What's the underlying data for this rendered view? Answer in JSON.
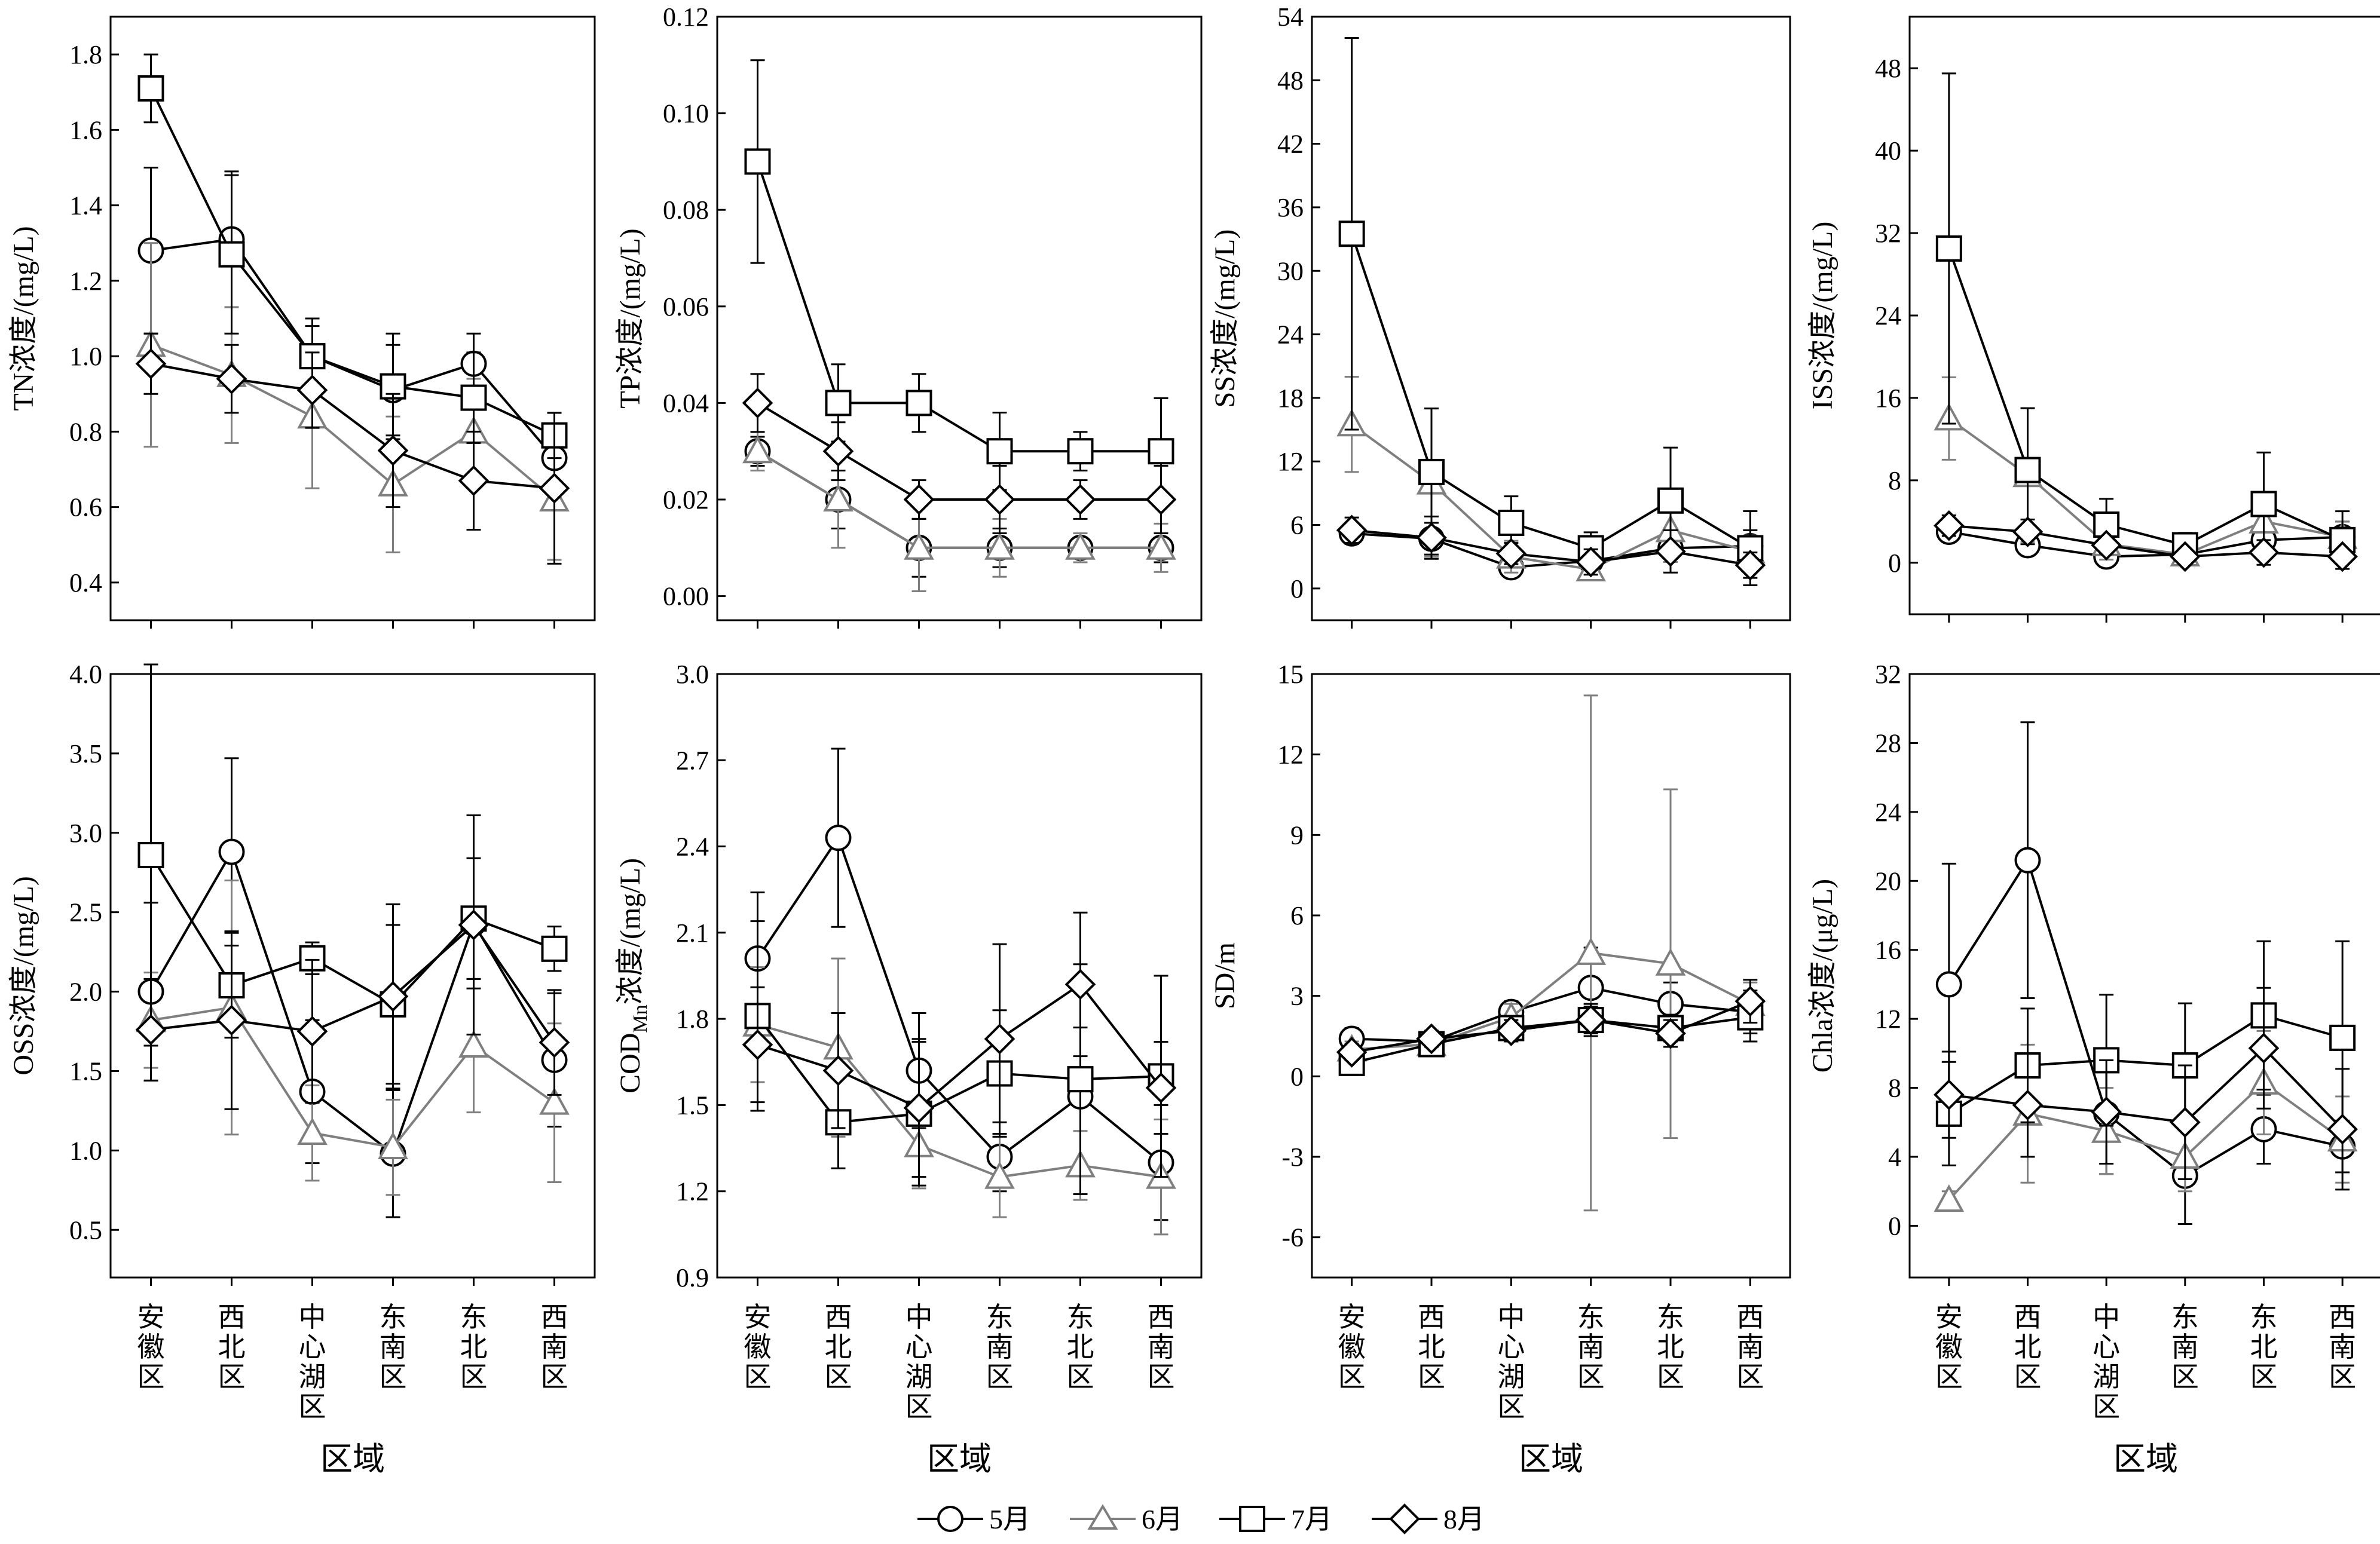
{
  "legend": {
    "items": [
      {
        "label": "5月",
        "marker": "circle",
        "color": "#000000"
      },
      {
        "label": "6月",
        "marker": "triangle",
        "color": "#7f7f7f"
      },
      {
        "label": "7月",
        "marker": "square",
        "color": "#000000"
      },
      {
        "label": "8月",
        "marker": "diamond",
        "color": "#000000"
      }
    ]
  },
  "chart_data": [
    {
      "type": "line",
      "ylabel": "TN浓度/(mg/L)",
      "xlabel": "",
      "categories": [
        "安徽区",
        "西北区",
        "中心湖区",
        "东南区",
        "东北区",
        "西南区"
      ],
      "ylim": [
        0.3,
        1.9
      ],
      "yticks": [
        0.4,
        0.6,
        0.8,
        1.0,
        1.2,
        1.4,
        1.6,
        1.8
      ],
      "tick_decimals": 1,
      "series": [
        {
          "name": "5月",
          "values": [
            1.28,
            1.31,
            1.0,
            0.91,
            0.98,
            0.73
          ],
          "err": [
            0.22,
            0.18,
            0.08,
            0.12,
            0.08,
            0.12
          ]
        },
        {
          "name": "6月",
          "values": [
            1.03,
            0.95,
            0.84,
            0.66,
            0.8,
            0.62
          ],
          "err": [
            0.27,
            0.18,
            0.19,
            0.18,
            0.14,
            0.16
          ]
        },
        {
          "name": "7月",
          "values": [
            1.71,
            1.27,
            1.0,
            0.92,
            0.89,
            0.79
          ],
          "err": [
            0.09,
            0.21,
            0.1,
            0.14,
            0.12,
            0.06
          ]
        },
        {
          "name": "8月",
          "values": [
            0.98,
            0.94,
            0.91,
            0.75,
            0.67,
            0.65
          ],
          "err": [
            0.08,
            0.09,
            0.1,
            0.15,
            0.13,
            0.2
          ]
        }
      ]
    },
    {
      "type": "line",
      "ylabel": "TP浓度/(mg/L)",
      "xlabel": "",
      "categories": [
        "安徽区",
        "西北区",
        "中心湖区",
        "东南区",
        "东北区",
        "西南区"
      ],
      "ylim": [
        -0.005,
        0.12
      ],
      "yticks": [
        0,
        0.02,
        0.04,
        0.06,
        0.08,
        0.1,
        0.12
      ],
      "tick_decimals": 2,
      "series": [
        {
          "name": "5月",
          "values": [
            0.03,
            0.02,
            0.01,
            0.01,
            0.01,
            0.01
          ],
          "err": [
            0.003,
            0.006,
            0.006,
            0.004,
            0.002,
            0.003
          ]
        },
        {
          "name": "6月",
          "values": [
            0.03,
            0.02,
            0.01,
            0.01,
            0.01,
            0.01
          ],
          "err": [
            0.004,
            0.01,
            0.009,
            0.006,
            0.003,
            0.005
          ]
        },
        {
          "name": "7月",
          "values": [
            0.09,
            0.04,
            0.04,
            0.03,
            0.03,
            0.03
          ],
          "err": [
            0.021,
            0.008,
            0.006,
            0.008,
            0.004,
            0.011
          ]
        },
        {
          "name": "8月",
          "values": [
            0.04,
            0.03,
            0.02,
            0.02,
            0.02,
            0.02
          ],
          "err": [
            0.006,
            0.006,
            0.004,
            0.007,
            0.004,
            0.007
          ]
        }
      ]
    },
    {
      "type": "line",
      "ylabel": "SS浓度/(mg/L)",
      "xlabel": "",
      "categories": [
        "安徽区",
        "西北区",
        "中心湖区",
        "东南区",
        "东北区",
        "西南区"
      ],
      "ylim": [
        -3,
        54
      ],
      "yticks": [
        0,
        6,
        12,
        18,
        24,
        30,
        36,
        42,
        48,
        54
      ],
      "tick_decimals": 0,
      "series": [
        {
          "name": "5月",
          "values": [
            5.2,
            4.7,
            2.0,
            2.6,
            3.8,
            4.0
          ],
          "err": [
            1.0,
            1.5,
            0.8,
            1.0,
            1.3,
            1.5
          ]
        },
        {
          "name": "6月",
          "values": [
            15.5,
            10.0,
            3.0,
            1.8,
            5.5,
            3.5
          ],
          "err": [
            4.5,
            7.0,
            1.5,
            0.8,
            3.0,
            1.5
          ]
        },
        {
          "name": "7月",
          "values": [
            33.5,
            11.0,
            6.2,
            3.8,
            8.3,
            3.8
          ],
          "err": [
            18.5,
            6.0,
            2.5,
            1.5,
            5.0,
            3.5
          ]
        },
        {
          "name": "8月",
          "values": [
            5.5,
            4.8,
            3.3,
            2.5,
            3.5,
            2.2
          ],
          "err": [
            1.2,
            2.0,
            1.0,
            1.2,
            2.0,
            1.2
          ]
        }
      ]
    },
    {
      "type": "line",
      "ylabel": "ISS浓度/(mg/L)",
      "xlabel": "",
      "categories": [
        "安徽区",
        "西北区",
        "中心湖区",
        "东南区",
        "东北区",
        "西南区"
      ],
      "ylim": [
        -5,
        53
      ],
      "yticks": [
        0,
        8,
        16,
        24,
        32,
        40,
        48
      ],
      "tick_decimals": 0,
      "series": [
        {
          "name": "5月",
          "values": [
            3.0,
            1.7,
            0.6,
            0.8,
            2.2,
            2.5
          ],
          "err": [
            0.8,
            1.0,
            0.5,
            0.6,
            1.2,
            1.5
          ]
        },
        {
          "name": "6月",
          "values": [
            14.0,
            8.5,
            1.8,
            0.8,
            4.0,
            2.5
          ],
          "err": [
            4.0,
            6.5,
            1.5,
            0.8,
            2.5,
            1.5
          ]
        },
        {
          "name": "7月",
          "values": [
            30.5,
            9.0,
            3.7,
            1.7,
            5.7,
            2.2
          ],
          "err": [
            17.0,
            6.0,
            2.5,
            1.2,
            5.0,
            2.8
          ]
        },
        {
          "name": "8月",
          "values": [
            3.6,
            3.0,
            1.7,
            0.6,
            1.0,
            0.6
          ],
          "err": [
            1.0,
            1.2,
            0.8,
            0.5,
            1.2,
            0.6
          ]
        }
      ]
    },
    {
      "type": "line",
      "ylabel": "OSS浓度/(mg/L)",
      "xlabel": "区域",
      "categories": [
        "安徽区",
        "西北区",
        "中心湖区",
        "东南区",
        "东北区",
        "西南区"
      ],
      "ylim": [
        0.2,
        4.0
      ],
      "yticks": [
        0.5,
        1.0,
        1.5,
        2.0,
        2.5,
        3.0,
        3.5,
        4.0
      ],
      "tick_decimals": 1,
      "series": [
        {
          "name": "5月",
          "values": [
            2.0,
            2.88,
            1.37,
            0.98,
            2.43,
            1.57
          ],
          "err": [
            0.56,
            0.59,
            0.45,
            0.4,
            0.41,
            0.42
          ]
        },
        {
          "name": "6月",
          "values": [
            1.82,
            1.9,
            1.11,
            1.02,
            1.66,
            1.3
          ],
          "err": [
            0.3,
            0.8,
            0.3,
            0.3,
            0.42,
            0.5
          ]
        },
        {
          "name": "7月",
          "values": [
            2.86,
            2.04,
            2.21,
            1.92,
            2.46,
            2.27
          ],
          "err": [
            1.2,
            0.33,
            0.1,
            0.5,
            0.38,
            0.14
          ]
        },
        {
          "name": "8月",
          "values": [
            1.76,
            1.82,
            1.75,
            1.97,
            2.42,
            1.68
          ],
          "err": [
            0.32,
            0.56,
            0.45,
            0.58,
            0.69,
            0.33
          ]
        }
      ]
    },
    {
      "type": "line",
      "ylabel": "CODMn浓度/(mg/L)",
      "ylabel_sub": "Mn",
      "xlabel": "区域",
      "categories": [
        "安徽区",
        "西北区",
        "中心湖区",
        "东南区",
        "东北区",
        "西南区"
      ],
      "ylim": [
        0.9,
        3.0
      ],
      "yticks": [
        0.9,
        1.2,
        1.5,
        1.8,
        2.1,
        2.4,
        2.7,
        3.0
      ],
      "tick_decimals": 1,
      "series": [
        {
          "name": "5月",
          "values": [
            2.01,
            2.43,
            1.62,
            1.32,
            1.53,
            1.3
          ],
          "err": [
            0.23,
            0.31,
            0.2,
            0.12,
            0.24,
            0.2
          ]
        },
        {
          "name": "6月",
          "values": [
            1.78,
            1.7,
            1.36,
            1.25,
            1.29,
            1.25
          ],
          "err": [
            0.2,
            0.31,
            0.15,
            0.14,
            0.12,
            0.2
          ]
        },
        {
          "name": "7月",
          "values": [
            1.81,
            1.44,
            1.47,
            1.61,
            1.59,
            1.6
          ],
          "err": [
            0.33,
            0.16,
            0.25,
            0.22,
            0.4,
            0.35
          ]
        },
        {
          "name": "8月",
          "values": [
            1.71,
            1.62,
            1.49,
            1.73,
            1.92,
            1.56
          ],
          "err": [
            0.2,
            0.2,
            0.24,
            0.33,
            0.25,
            0.16
          ]
        }
      ]
    },
    {
      "type": "line",
      "ylabel": "SD/m",
      "xlabel": "区域",
      "categories": [
        "安徽区",
        "西北区",
        "中心湖区",
        "东南区",
        "东北区",
        "西南区"
      ],
      "ylim": [
        -7.5,
        15
      ],
      "yticks": [
        -6,
        -3,
        0,
        3,
        6,
        9,
        12,
        15
      ],
      "tick_decimals": 0,
      "series": [
        {
          "name": "5月",
          "values": [
            1.4,
            1.3,
            2.4,
            3.3,
            2.7,
            2.4
          ],
          "err": [
            0.4,
            0.3,
            0.4,
            1.5,
            0.8,
            0.8
          ]
        },
        {
          "name": "6月",
          "values": [
            1.0,
            1.2,
            2.2,
            4.6,
            4.2,
            2.7
          ],
          "err": [
            0.3,
            0.3,
            0.5,
            9.6,
            6.5,
            0.8
          ]
        },
        {
          "name": "7月",
          "values": [
            0.5,
            1.2,
            1.8,
            2.1,
            1.8,
            2.2
          ],
          "err": [
            0.2,
            0.3,
            0.4,
            0.6,
            0.5,
            0.9
          ]
        },
        {
          "name": "8月",
          "values": [
            0.9,
            1.4,
            1.7,
            2.1,
            1.6,
            2.8
          ],
          "err": [
            0.3,
            0.3,
            0.4,
            0.5,
            0.5,
            0.8
          ]
        }
      ]
    },
    {
      "type": "line",
      "ylabel": "Chla浓度/(μg/L)",
      "xlabel": "区域",
      "categories": [
        "安徽区",
        "西北区",
        "中心湖区",
        "东南区",
        "东北区",
        "西南区"
      ],
      "ylim": [
        -3,
        32
      ],
      "yticks": [
        0,
        4,
        8,
        12,
        16,
        20,
        24,
        28,
        32
      ],
      "tick_decimals": 0,
      "series": [
        {
          "name": "5月",
          "values": [
            14.0,
            21.2,
            6.5,
            2.9,
            5.6,
            4.6
          ],
          "err": [
            7.0,
            8.0,
            3.5,
            2.8,
            2.0,
            1.5
          ]
        },
        {
          "name": "6月",
          "values": [
            1.5,
            6.5,
            5.5,
            4.0,
            8.3,
            5.0
          ],
          "err": [
            0.5,
            4.0,
            2.5,
            2.0,
            3.0,
            2.5
          ]
        },
        {
          "name": "7月",
          "values": [
            6.5,
            9.3,
            9.6,
            9.3,
            12.2,
            10.9
          ],
          "err": [
            3.0,
            3.3,
            3.8,
            3.6,
            4.3,
            5.6
          ]
        },
        {
          "name": "8月",
          "values": [
            7.6,
            7.0,
            6.6,
            6.0,
            10.3,
            5.6
          ],
          "err": [
            2.5,
            3.0,
            3.0,
            3.3,
            3.5,
            3.5
          ]
        }
      ]
    }
  ]
}
